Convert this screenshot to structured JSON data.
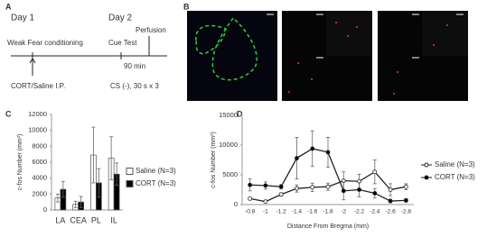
{
  "panel_labels": {
    "a": "A",
    "b": "B"
  },
  "diagram": {
    "day1": "Day 1",
    "day2": "Day 2",
    "conditioning": "Weak Fear conditioning",
    "cue_test": "Cue Test",
    "perfusion": "Perfusion",
    "interval": "90 min",
    "injection": "CORT/Saline I.P.",
    "cs": "CS (-), 30 s x 3"
  },
  "chart_data": [
    {
      "type": "bar",
      "panel": "C",
      "ylabel": "c-fos Number (mm²)",
      "categories": [
        "LA",
        "CEA",
        "PL",
        "IL"
      ],
      "ylim": [
        0,
        12000
      ],
      "yticks": [
        0,
        2000,
        4000,
        6000,
        8000,
        10000,
        12000
      ],
      "series": [
        {
          "name": "Saline (N=3)",
          "color": "#ffffff",
          "values": [
            1500,
            700,
            6900,
            6500
          ],
          "errors": [
            500,
            400,
            3500,
            2700
          ]
        },
        {
          "name": "CORT (N=3)",
          "color": "#000000",
          "values": [
            2600,
            1000,
            3400,
            4500
          ],
          "errors": [
            1000,
            700,
            1800,
            1400
          ]
        }
      ]
    },
    {
      "type": "line",
      "panel": "D",
      "ylabel": "c-fos Number (mm²)",
      "xlabel": "Distance From Bregma (mm)",
      "categories": [
        "-0.8",
        "-1",
        "-1.2",
        "-1.4",
        "-1.6",
        "-1.8",
        "-2",
        "-2.2",
        "-2.4",
        "-2.6",
        "-2.8"
      ],
      "ylim": [
        0,
        15000
      ],
      "yticks": [
        0,
        5000,
        10000,
        15000
      ],
      "series": [
        {
          "name": "Saline (N=3)",
          "color": "#ffffff",
          "values": [
            1000,
            500,
            1700,
            2700,
            2900,
            3000,
            4000,
            3900,
            5500,
            2500,
            3000
          ],
          "errors": [
            200,
            200,
            300,
            600,
            700,
            600,
            1500,
            1200,
            2000,
            1000,
            500
          ]
        },
        {
          "name": "CORT (N=3)",
          "color": "#000000",
          "values": [
            3300,
            3200,
            3000,
            7800,
            9400,
            8800,
            2300,
            2500,
            1900,
            600,
            700
          ],
          "errors": [
            1000,
            600,
            400,
            3500,
            3000,
            2500,
            1500,
            1200,
            800,
            300,
            300
          ]
        }
      ]
    }
  ]
}
